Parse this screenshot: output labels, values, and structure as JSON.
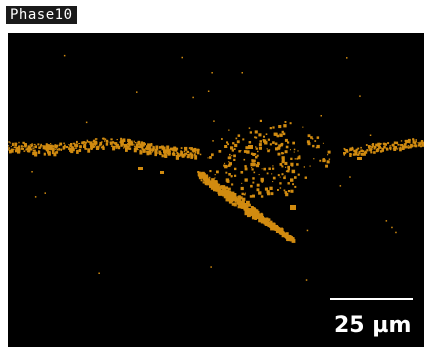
{
  "label": "Phase10",
  "scale_bar": {
    "text": "25 µm"
  },
  "colors": {
    "phase": "#d18b10",
    "background": "#000000",
    "label_bg": "#1a1a1a",
    "text": "#ffffff"
  }
}
